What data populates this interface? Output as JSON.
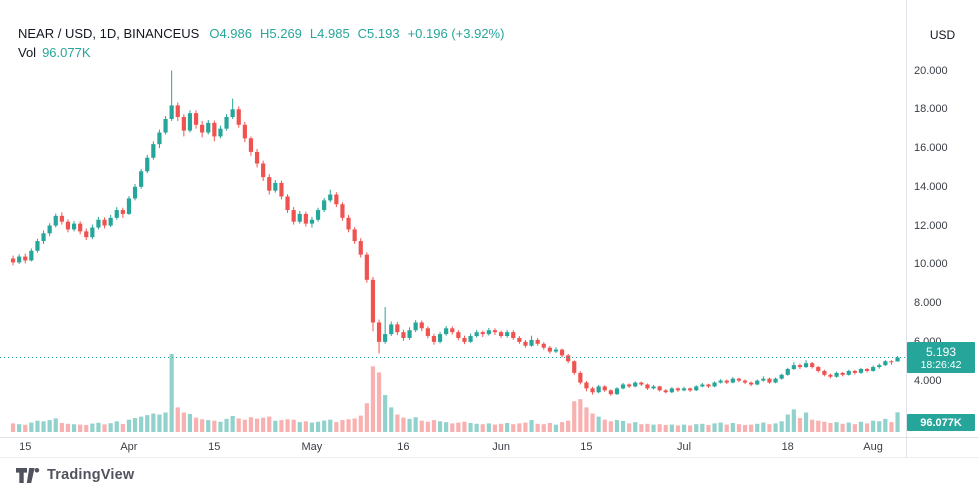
{
  "header": {
    "symbol": "NEAR / USD, 1D, BINANCEUS",
    "open_text": "O4.986",
    "high_text": "H5.269",
    "low_text": "L4.985",
    "close_text": "C5.193",
    "change_text": "+0.196 (+3.92%)",
    "volume_label": "Vol",
    "volume_value": "96.077K"
  },
  "price_axis": {
    "currency_label": "USD",
    "ticks": [
      "20.000",
      "18.000",
      "16.000",
      "14.000",
      "12.000",
      "10.000",
      "8.000",
      "6.000",
      "4.000"
    ],
    "price_badge": {
      "price": "5.193",
      "countdown": "18:26:42"
    },
    "volume_badge": "96.077K"
  },
  "footer": {
    "brand": "TradingView"
  },
  "colors": {
    "up": "#26a69a",
    "down": "#ef5350",
    "vol_up": "rgba(38,166,154,0.5)",
    "vol_down": "rgba(239,83,80,0.45)",
    "badge": "#26a69a",
    "text": "#131722",
    "axis_line": "#e0e3eb"
  },
  "chart_data": {
    "type": "candlestick",
    "title": "NEAR / USD, 1D, BINANCEUS",
    "ylabel": "USD",
    "legend_ohlc": {
      "open": 4.986,
      "high": 5.269,
      "low": 4.985,
      "close": 5.193,
      "change_abs": 0.196,
      "change_pct": 3.92
    },
    "current_price": 5.193,
    "current_volume_k": 96.077,
    "y_ticks": [
      20,
      18,
      16,
      14,
      12,
      10,
      8,
      6,
      4
    ],
    "y_range": [
      3.0,
      20.8
    ],
    "grid": false,
    "x_ticks": [
      {
        "i": 2,
        "label": "15"
      },
      {
        "i": 19,
        "label": "Apr"
      },
      {
        "i": 33,
        "label": "15"
      },
      {
        "i": 49,
        "label": "May"
      },
      {
        "i": 64,
        "label": "16"
      },
      {
        "i": 80,
        "label": "Jun"
      },
      {
        "i": 94,
        "label": "15"
      },
      {
        "i": 110,
        "label": "Jul"
      },
      {
        "i": 127,
        "label": "18"
      },
      {
        "i": 141,
        "label": "Aug"
      }
    ],
    "candles_format": [
      "open",
      "high",
      "low",
      "close",
      "volume_k"
    ],
    "candles": [
      [
        10.3,
        10.45,
        9.95,
        10.1,
        42
      ],
      [
        10.1,
        10.52,
        10.02,
        10.4,
        38
      ],
      [
        10.4,
        10.55,
        10.05,
        10.2,
        35
      ],
      [
        10.2,
        10.82,
        10.15,
        10.7,
        46
      ],
      [
        10.7,
        11.32,
        10.6,
        11.2,
        55
      ],
      [
        11.2,
        11.75,
        11.05,
        11.6,
        52
      ],
      [
        11.6,
        12.12,
        11.45,
        12.0,
        58
      ],
      [
        12.0,
        12.62,
        11.9,
        12.5,
        66
      ],
      [
        12.5,
        12.68,
        12.05,
        12.2,
        44
      ],
      [
        12.2,
        12.32,
        11.65,
        11.8,
        40
      ],
      [
        11.8,
        12.24,
        11.7,
        12.1,
        38
      ],
      [
        12.1,
        12.22,
        11.55,
        11.7,
        36
      ],
      [
        11.7,
        11.85,
        11.25,
        11.4,
        34
      ],
      [
        11.4,
        12.05,
        11.3,
        11.9,
        41
      ],
      [
        11.9,
        12.45,
        11.8,
        12.3,
        45
      ],
      [
        12.3,
        12.42,
        11.85,
        12.0,
        37
      ],
      [
        12.0,
        12.55,
        11.92,
        12.4,
        43
      ],
      [
        12.4,
        12.95,
        12.3,
        12.8,
        52
      ],
      [
        12.8,
        12.92,
        12.4,
        12.6,
        39
      ],
      [
        12.6,
        13.52,
        12.55,
        13.4,
        60
      ],
      [
        13.4,
        14.15,
        13.3,
        14.0,
        68
      ],
      [
        14.0,
        14.92,
        13.9,
        14.8,
        75
      ],
      [
        14.8,
        15.65,
        14.7,
        15.5,
        82
      ],
      [
        15.5,
        16.35,
        15.4,
        16.2,
        90
      ],
      [
        16.2,
        16.95,
        16.0,
        16.8,
        85
      ],
      [
        16.8,
        17.65,
        16.7,
        17.5,
        95
      ],
      [
        17.5,
        20.0,
        17.4,
        18.2,
        380
      ],
      [
        18.2,
        18.35,
        17.4,
        17.6,
        120
      ],
      [
        17.6,
        17.75,
        16.6,
        16.9,
        95
      ],
      [
        16.9,
        17.95,
        16.8,
        17.8,
        88
      ],
      [
        17.8,
        17.95,
        17.0,
        17.2,
        70
      ],
      [
        17.2,
        17.4,
        16.55,
        16.8,
        62
      ],
      [
        16.8,
        17.45,
        16.7,
        17.3,
        58
      ],
      [
        17.3,
        17.42,
        16.35,
        16.6,
        55
      ],
      [
        16.6,
        17.15,
        16.5,
        17.0,
        50
      ],
      [
        17.0,
        17.75,
        16.9,
        17.6,
        64
      ],
      [
        17.6,
        18.55,
        17.5,
        18.0,
        78
      ],
      [
        18.0,
        18.15,
        17.05,
        17.2,
        66
      ],
      [
        17.2,
        17.35,
        16.3,
        16.5,
        60
      ],
      [
        16.5,
        16.6,
        15.6,
        15.8,
        72
      ],
      [
        15.8,
        15.95,
        15.0,
        15.2,
        65
      ],
      [
        15.2,
        15.35,
        14.3,
        14.5,
        70
      ],
      [
        14.5,
        14.65,
        13.6,
        13.8,
        75
      ],
      [
        13.8,
        14.35,
        13.7,
        14.2,
        55
      ],
      [
        14.2,
        14.32,
        13.35,
        13.5,
        58
      ],
      [
        13.5,
        13.62,
        12.65,
        12.8,
        62
      ],
      [
        12.8,
        12.95,
        12.05,
        12.2,
        60
      ],
      [
        12.2,
        12.75,
        12.1,
        12.6,
        48
      ],
      [
        12.6,
        12.72,
        11.95,
        12.1,
        52
      ],
      [
        12.1,
        12.45,
        11.9,
        12.3,
        46
      ],
      [
        12.3,
        12.92,
        12.2,
        12.8,
        50
      ],
      [
        12.8,
        13.42,
        12.7,
        13.3,
        56
      ],
      [
        13.3,
        13.85,
        13.2,
        13.6,
        60
      ],
      [
        13.6,
        13.72,
        12.95,
        13.1,
        48
      ],
      [
        13.1,
        13.2,
        12.25,
        12.4,
        58
      ],
      [
        12.4,
        12.55,
        11.65,
        11.8,
        62
      ],
      [
        11.8,
        11.92,
        11.05,
        11.2,
        66
      ],
      [
        11.2,
        11.35,
        10.35,
        10.5,
        80
      ],
      [
        10.5,
        10.62,
        9.05,
        9.2,
        140
      ],
      [
        9.2,
        9.35,
        6.55,
        7.0,
        320
      ],
      [
        7.0,
        7.15,
        5.4,
        6.0,
        290
      ],
      [
        6.0,
        7.8,
        5.9,
        6.4,
        180
      ],
      [
        6.4,
        7.05,
        6.3,
        6.9,
        120
      ],
      [
        6.9,
        7.02,
        6.35,
        6.5,
        85
      ],
      [
        6.5,
        6.62,
        6.05,
        6.2,
        70
      ],
      [
        6.2,
        6.75,
        6.1,
        6.6,
        64
      ],
      [
        6.6,
        7.12,
        6.5,
        7.0,
        72
      ],
      [
        7.0,
        7.1,
        6.55,
        6.7,
        55
      ],
      [
        6.7,
        6.8,
        6.18,
        6.3,
        50
      ],
      [
        6.3,
        6.42,
        5.85,
        6.0,
        58
      ],
      [
        6.0,
        6.52,
        5.92,
        6.4,
        52
      ],
      [
        6.4,
        6.82,
        6.32,
        6.7,
        48
      ],
      [
        6.7,
        6.8,
        6.38,
        6.5,
        42
      ],
      [
        6.5,
        6.6,
        6.08,
        6.2,
        46
      ],
      [
        6.2,
        6.32,
        5.88,
        6.0,
        50
      ],
      [
        6.0,
        6.42,
        5.95,
        6.3,
        44
      ],
      [
        6.3,
        6.62,
        6.22,
        6.5,
        40
      ],
      [
        6.5,
        6.58,
        6.25,
        6.4,
        38
      ],
      [
        6.4,
        6.72,
        6.32,
        6.6,
        42
      ],
      [
        6.6,
        6.7,
        6.35,
        6.5,
        36
      ],
      [
        6.5,
        6.58,
        6.2,
        6.3,
        40
      ],
      [
        6.3,
        6.62,
        6.22,
        6.5,
        44
      ],
      [
        6.5,
        6.6,
        6.1,
        6.2,
        38
      ],
      [
        6.2,
        6.3,
        5.9,
        6.0,
        42
      ],
      [
        6.0,
        6.1,
        5.7,
        5.8,
        46
      ],
      [
        5.8,
        6.32,
        5.75,
        6.1,
        58
      ],
      [
        6.1,
        6.2,
        5.8,
        5.9,
        40
      ],
      [
        5.9,
        5.98,
        5.6,
        5.7,
        38
      ],
      [
        5.7,
        5.78,
        5.4,
        5.5,
        44
      ],
      [
        5.5,
        5.72,
        5.42,
        5.6,
        36
      ],
      [
        5.6,
        5.65,
        5.2,
        5.3,
        48
      ],
      [
        5.3,
        5.38,
        4.9,
        5.0,
        55
      ],
      [
        5.0,
        5.05,
        4.3,
        4.4,
        150
      ],
      [
        4.4,
        4.48,
        3.8,
        3.9,
        160
      ],
      [
        3.9,
        3.98,
        3.45,
        3.6,
        120
      ],
      [
        3.6,
        3.68,
        3.28,
        3.4,
        90
      ],
      [
        3.4,
        3.78,
        3.35,
        3.7,
        75
      ],
      [
        3.7,
        3.76,
        3.42,
        3.5,
        60
      ],
      [
        3.5,
        3.55,
        3.22,
        3.3,
        52
      ],
      [
        3.3,
        3.66,
        3.26,
        3.6,
        58
      ],
      [
        3.6,
        3.88,
        3.55,
        3.8,
        54
      ],
      [
        3.8,
        3.86,
        3.62,
        3.7,
        42
      ],
      [
        3.7,
        3.96,
        3.65,
        3.9,
        48
      ],
      [
        3.9,
        3.95,
        3.72,
        3.8,
        38
      ],
      [
        3.8,
        3.85,
        3.52,
        3.6,
        40
      ],
      [
        3.6,
        3.78,
        3.55,
        3.7,
        36
      ],
      [
        3.7,
        3.74,
        3.44,
        3.5,
        38
      ],
      [
        3.5,
        3.56,
        3.34,
        3.4,
        34
      ],
      [
        3.4,
        3.66,
        3.36,
        3.6,
        36
      ],
      [
        3.6,
        3.65,
        3.42,
        3.5,
        32
      ],
      [
        3.5,
        3.68,
        3.45,
        3.6,
        36
      ],
      [
        3.6,
        3.64,
        3.42,
        3.5,
        32
      ],
      [
        3.5,
        3.76,
        3.46,
        3.7,
        38
      ],
      [
        3.7,
        3.88,
        3.65,
        3.8,
        40
      ],
      [
        3.8,
        3.84,
        3.62,
        3.7,
        34
      ],
      [
        3.7,
        3.96,
        3.66,
        3.9,
        42
      ],
      [
        3.9,
        4.08,
        3.85,
        4.0,
        46
      ],
      [
        4.0,
        4.05,
        3.82,
        3.9,
        36
      ],
      [
        3.9,
        4.18,
        3.86,
        4.1,
        44
      ],
      [
        4.1,
        4.15,
        3.92,
        4.0,
        38
      ],
      [
        4.0,
        4.06,
        3.82,
        3.9,
        34
      ],
      [
        3.9,
        3.95,
        3.72,
        3.8,
        36
      ],
      [
        3.8,
        4.06,
        3.76,
        4.0,
        40
      ],
      [
        4.0,
        4.22,
        3.95,
        4.1,
        46
      ],
      [
        4.1,
        4.15,
        3.84,
        3.9,
        38
      ],
      [
        3.9,
        4.16,
        3.86,
        4.1,
        42
      ],
      [
        4.1,
        4.36,
        4.05,
        4.3,
        52
      ],
      [
        4.3,
        4.66,
        4.25,
        4.6,
        85
      ],
      [
        4.6,
        4.95,
        4.55,
        4.8,
        110
      ],
      [
        4.8,
        4.88,
        4.6,
        4.7,
        68
      ],
      [
        4.7,
        5.05,
        4.65,
        4.9,
        95
      ],
      [
        4.9,
        4.96,
        4.62,
        4.7,
        60
      ],
      [
        4.7,
        4.76,
        4.42,
        4.5,
        55
      ],
      [
        4.5,
        4.56,
        4.22,
        4.3,
        50
      ],
      [
        4.3,
        4.36,
        4.12,
        4.2,
        44
      ],
      [
        4.2,
        4.46,
        4.15,
        4.4,
        48
      ],
      [
        4.4,
        4.45,
        4.22,
        4.3,
        40
      ],
      [
        4.3,
        4.56,
        4.26,
        4.5,
        46
      ],
      [
        4.5,
        4.55,
        4.32,
        4.4,
        38
      ],
      [
        4.4,
        4.66,
        4.35,
        4.6,
        50
      ],
      [
        4.6,
        4.65,
        4.42,
        4.5,
        42
      ],
      [
        4.5,
        4.78,
        4.46,
        4.7,
        55
      ],
      [
        4.7,
        4.88,
        4.62,
        4.8,
        52
      ],
      [
        4.8,
        5.06,
        4.75,
        5.0,
        64
      ],
      [
        5.0,
        5.05,
        4.82,
        4.99,
        48
      ],
      [
        4.986,
        5.269,
        4.985,
        5.193,
        96.077
      ]
    ]
  }
}
